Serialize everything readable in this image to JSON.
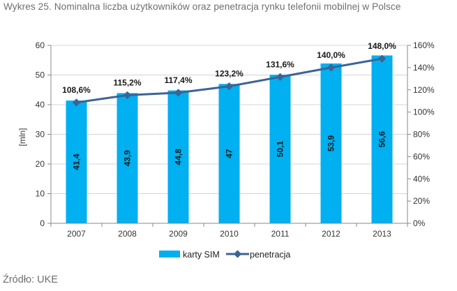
{
  "title": "Wykres 25. Nominalna liczba użytkowników oraz penetracja rynku telefonii mobilnej w Polsce",
  "source": "Źródło: UKE",
  "colors": {
    "bar": "#00b0f0",
    "line": "#3b6496",
    "grid": "#d4d4d4",
    "axis": "#888888"
  },
  "chart_data": {
    "type": "bar",
    "categories": [
      "2007",
      "2008",
      "2009",
      "2010",
      "2011",
      "2012",
      "2013"
    ],
    "series": [
      {
        "name": "karty SIM",
        "type": "bar",
        "axis": "left",
        "values": [
          41.4,
          43.9,
          44.8,
          47,
          50.1,
          53.9,
          56.6
        ],
        "labels": [
          "41,4",
          "43,9",
          "44,8",
          "47",
          "50,1",
          "53,9",
          "56,6"
        ]
      },
      {
        "name": "penetracja",
        "type": "line",
        "axis": "right",
        "values": [
          108.6,
          115.2,
          117.4,
          123.2,
          131.6,
          140.0,
          148.0
        ],
        "labels": [
          "108,6%",
          "115,2%",
          "117,4%",
          "123,2%",
          "131,6%",
          "140,0%",
          "148,0%"
        ]
      }
    ],
    "y_left": {
      "label": "[mln]",
      "ylim": [
        0,
        60
      ],
      "ticks": [
        "0",
        "10",
        "20",
        "30",
        "40",
        "50",
        "60"
      ]
    },
    "y_right": {
      "label": "",
      "ylim": [
        0,
        160
      ],
      "ticks": [
        "0%",
        "20%",
        "40%",
        "60%",
        "80%",
        "100%",
        "120%",
        "140%",
        "160%"
      ]
    },
    "grid": true,
    "legend": {
      "position": "bottom",
      "items": [
        "karty SIM",
        "penetracja"
      ]
    }
  }
}
